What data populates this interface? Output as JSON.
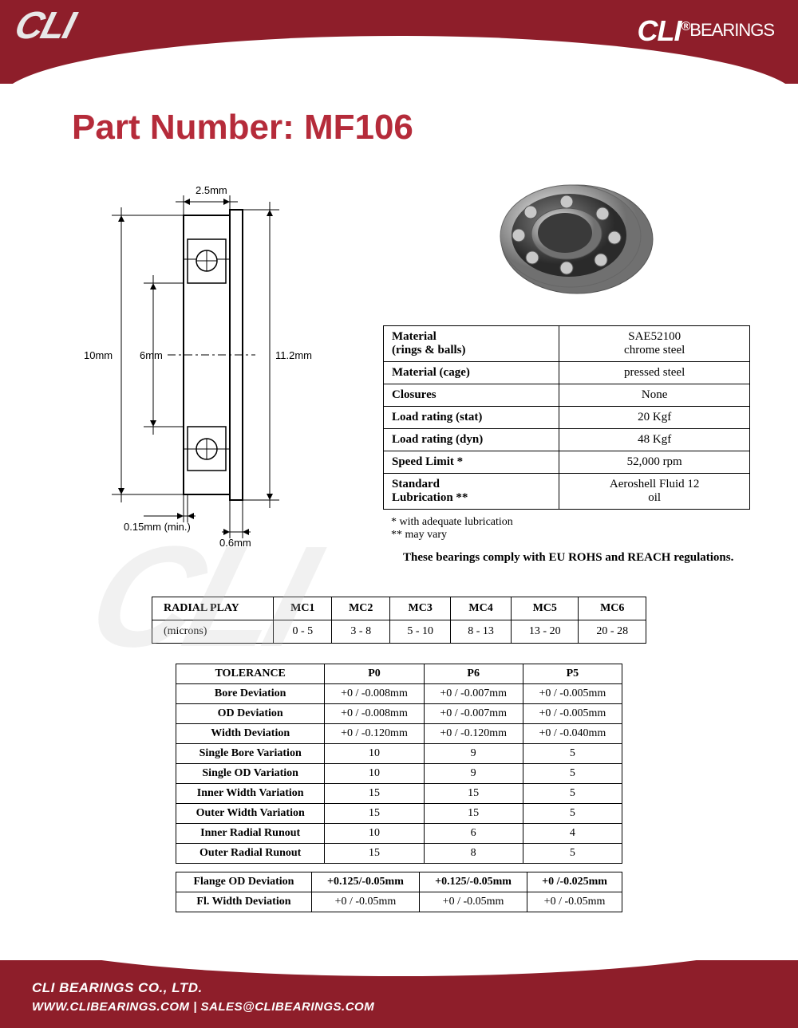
{
  "brand": {
    "logo_left": "CLI",
    "logo_right_cli": "CLI",
    "logo_right_reg": "®",
    "logo_right_bearings": "BEARINGS",
    "header_bg": "#8e1e2a",
    "title_color": "#b52b3a"
  },
  "title": "Part Number: MF106",
  "diagram": {
    "dim_top": "2.5mm",
    "dim_outer": "10mm",
    "dim_inner": "6mm",
    "dim_flange_od": "11.2mm",
    "dim_chamfer": "0.15mm (min.)",
    "dim_flange_w": "0.6mm"
  },
  "specs": {
    "rows": [
      {
        "label": "Material\n(rings & balls)",
        "value": "SAE52100\nchrome steel"
      },
      {
        "label": "Material (cage)",
        "value": "pressed steel"
      },
      {
        "label": "Closures",
        "value": "None"
      },
      {
        "label": "Load rating (stat)",
        "value": "20 Kgf"
      },
      {
        "label": "Load rating (dyn)",
        "value": "48 Kgf"
      },
      {
        "label": "Speed Limit *",
        "value": "52,000 rpm"
      },
      {
        "label": "Standard\nLubrication **",
        "value": "Aeroshell Fluid 12\noil"
      }
    ],
    "footnote1": "* with adequate lubrication",
    "footnote2": "** may vary",
    "compliance": "These bearings comply with EU ROHS and REACH  regulations."
  },
  "radial": {
    "header": [
      "RADIAL PLAY",
      "MC1",
      "MC2",
      "MC3",
      "MC4",
      "MC5",
      "MC6"
    ],
    "row": [
      "(microns)",
      "0 - 5",
      "3 - 8",
      "5 - 10",
      "8 - 13",
      "13 - 20",
      "20 - 28"
    ]
  },
  "tolerance1": {
    "header": [
      "TOLERANCE",
      "P0",
      "P6",
      "P5"
    ],
    "rows": [
      [
        "Bore Deviation",
        "+0 / -0.008mm",
        "+0 / -0.007mm",
        "+0 / -0.005mm"
      ],
      [
        "OD Deviation",
        "+0 / -0.008mm",
        "+0 / -0.007mm",
        "+0 / -0.005mm"
      ],
      [
        "Width Deviation",
        "+0 / -0.120mm",
        "+0 / -0.120mm",
        "+0 / -0.040mm"
      ],
      [
        "Single Bore Variation",
        "10",
        "9",
        "5"
      ],
      [
        "Single OD Variation",
        "10",
        "9",
        "5"
      ],
      [
        "Inner Width Variation",
        "15",
        "15",
        "5"
      ],
      [
        "Outer Width Variation",
        "15",
        "15",
        "5"
      ],
      [
        "Inner Radial Runout",
        "10",
        "6",
        "4"
      ],
      [
        "Outer Radial Runout",
        "15",
        "8",
        "5"
      ]
    ]
  },
  "tolerance2": {
    "rows": [
      [
        "Flange OD Deviation",
        "+0.125/-0.05mm",
        "+0.125/-0.05mm",
        "+0 /-0.025mm"
      ],
      [
        "Fl. Width Deviation",
        "+0 / -0.05mm",
        "+0 / -0.05mm",
        "+0 / -0.05mm"
      ]
    ]
  },
  "footer": {
    "company": "CLI BEARINGS CO., LTD.",
    "contact": "WWW.CLIBEARINGS.COM   |   SALES@CLIBEARINGS.COM"
  }
}
